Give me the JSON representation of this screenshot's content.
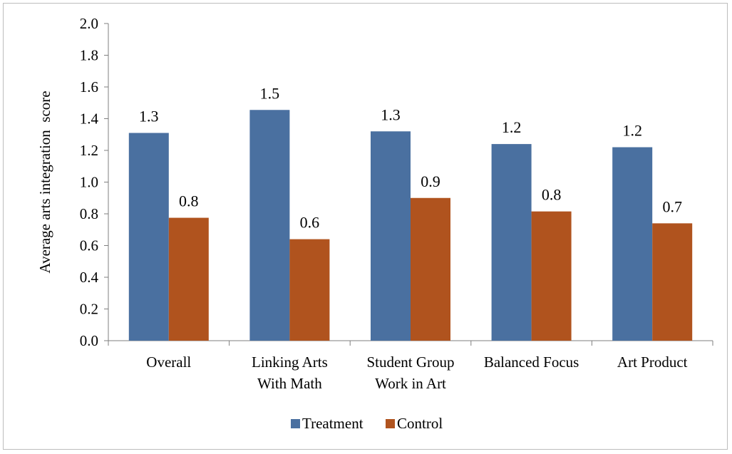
{
  "chart_data": {
    "type": "bar",
    "title": "",
    "xlabel": "",
    "ylabel": "Average arts integration  score",
    "ylim": [
      0,
      2.0
    ],
    "ytick_step": 0.2,
    "ytick_labels": [
      "0.0",
      "0.2",
      "0.4",
      "0.6",
      "0.8",
      "1.0",
      "1.2",
      "1.4",
      "1.6",
      "1.8",
      "2.0"
    ],
    "grid": false,
    "legend_position": "bottom",
    "categories": [
      [
        "Overall"
      ],
      [
        "Linking Arts",
        "With Math"
      ],
      [
        "Student Group",
        "Work in Art"
      ],
      [
        "Balanced Focus"
      ],
      [
        "Art Product"
      ]
    ],
    "series": [
      {
        "name": "Treatment",
        "color": "#4A70A0",
        "values": [
          1.31,
          1.455,
          1.32,
          1.24,
          1.22
        ],
        "data_labels": [
          "1.3",
          "1.5",
          "1.3",
          "1.2",
          "1.2"
        ]
      },
      {
        "name": "Control",
        "color": "#B0531E",
        "values": [
          0.775,
          0.64,
          0.9,
          0.815,
          0.74
        ],
        "data_labels": [
          "0.8",
          "0.6",
          "0.9",
          "0.8",
          "0.7"
        ]
      }
    ]
  }
}
